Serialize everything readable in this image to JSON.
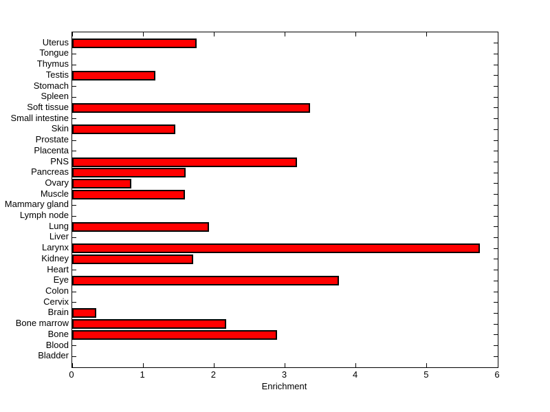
{
  "figure": {
    "background": "#FFFFFF",
    "title": ""
  },
  "chart_data": {
    "type": "bar",
    "orientation": "horizontal",
    "title": "",
    "xlabel": "Enrichment",
    "ylabel": "",
    "xlim": [
      0,
      6
    ],
    "x_ticks": [
      0,
      1,
      2,
      3,
      4,
      5,
      6
    ],
    "x_tick_labels": [
      "0",
      "1",
      "2",
      "3",
      "4",
      "5",
      "6"
    ],
    "grid": false,
    "legend": null,
    "bar_color": "#FF0000",
    "bar_edge_color": "#000000",
    "axis_color": "#000000",
    "categories": [
      "Uterus",
      "Tongue",
      "Thymus",
      "Testis",
      "Stomach",
      "Spleen",
      "Soft tissue",
      "Small intestine",
      "Skin",
      "Prostate",
      "Placenta",
      "PNS",
      "Pancreas",
      "Ovary",
      "Muscle",
      "Mammary gland",
      "Lymph node",
      "Lung",
      "Liver",
      "Larynx",
      "Kidney",
      "Heart",
      "Eye",
      "Colon",
      "Cervix",
      "Brain",
      "Bone marrow",
      "Bone",
      "Blood",
      "Bladder"
    ],
    "values": [
      1.75,
      0,
      0,
      1.17,
      0,
      0,
      3.35,
      0,
      1.45,
      0,
      0,
      3.17,
      1.6,
      0.83,
      1.59,
      0,
      0,
      1.93,
      0,
      5.75,
      1.71,
      0,
      3.76,
      0,
      0,
      0.34,
      2.17,
      2.89,
      0,
      0
    ]
  }
}
